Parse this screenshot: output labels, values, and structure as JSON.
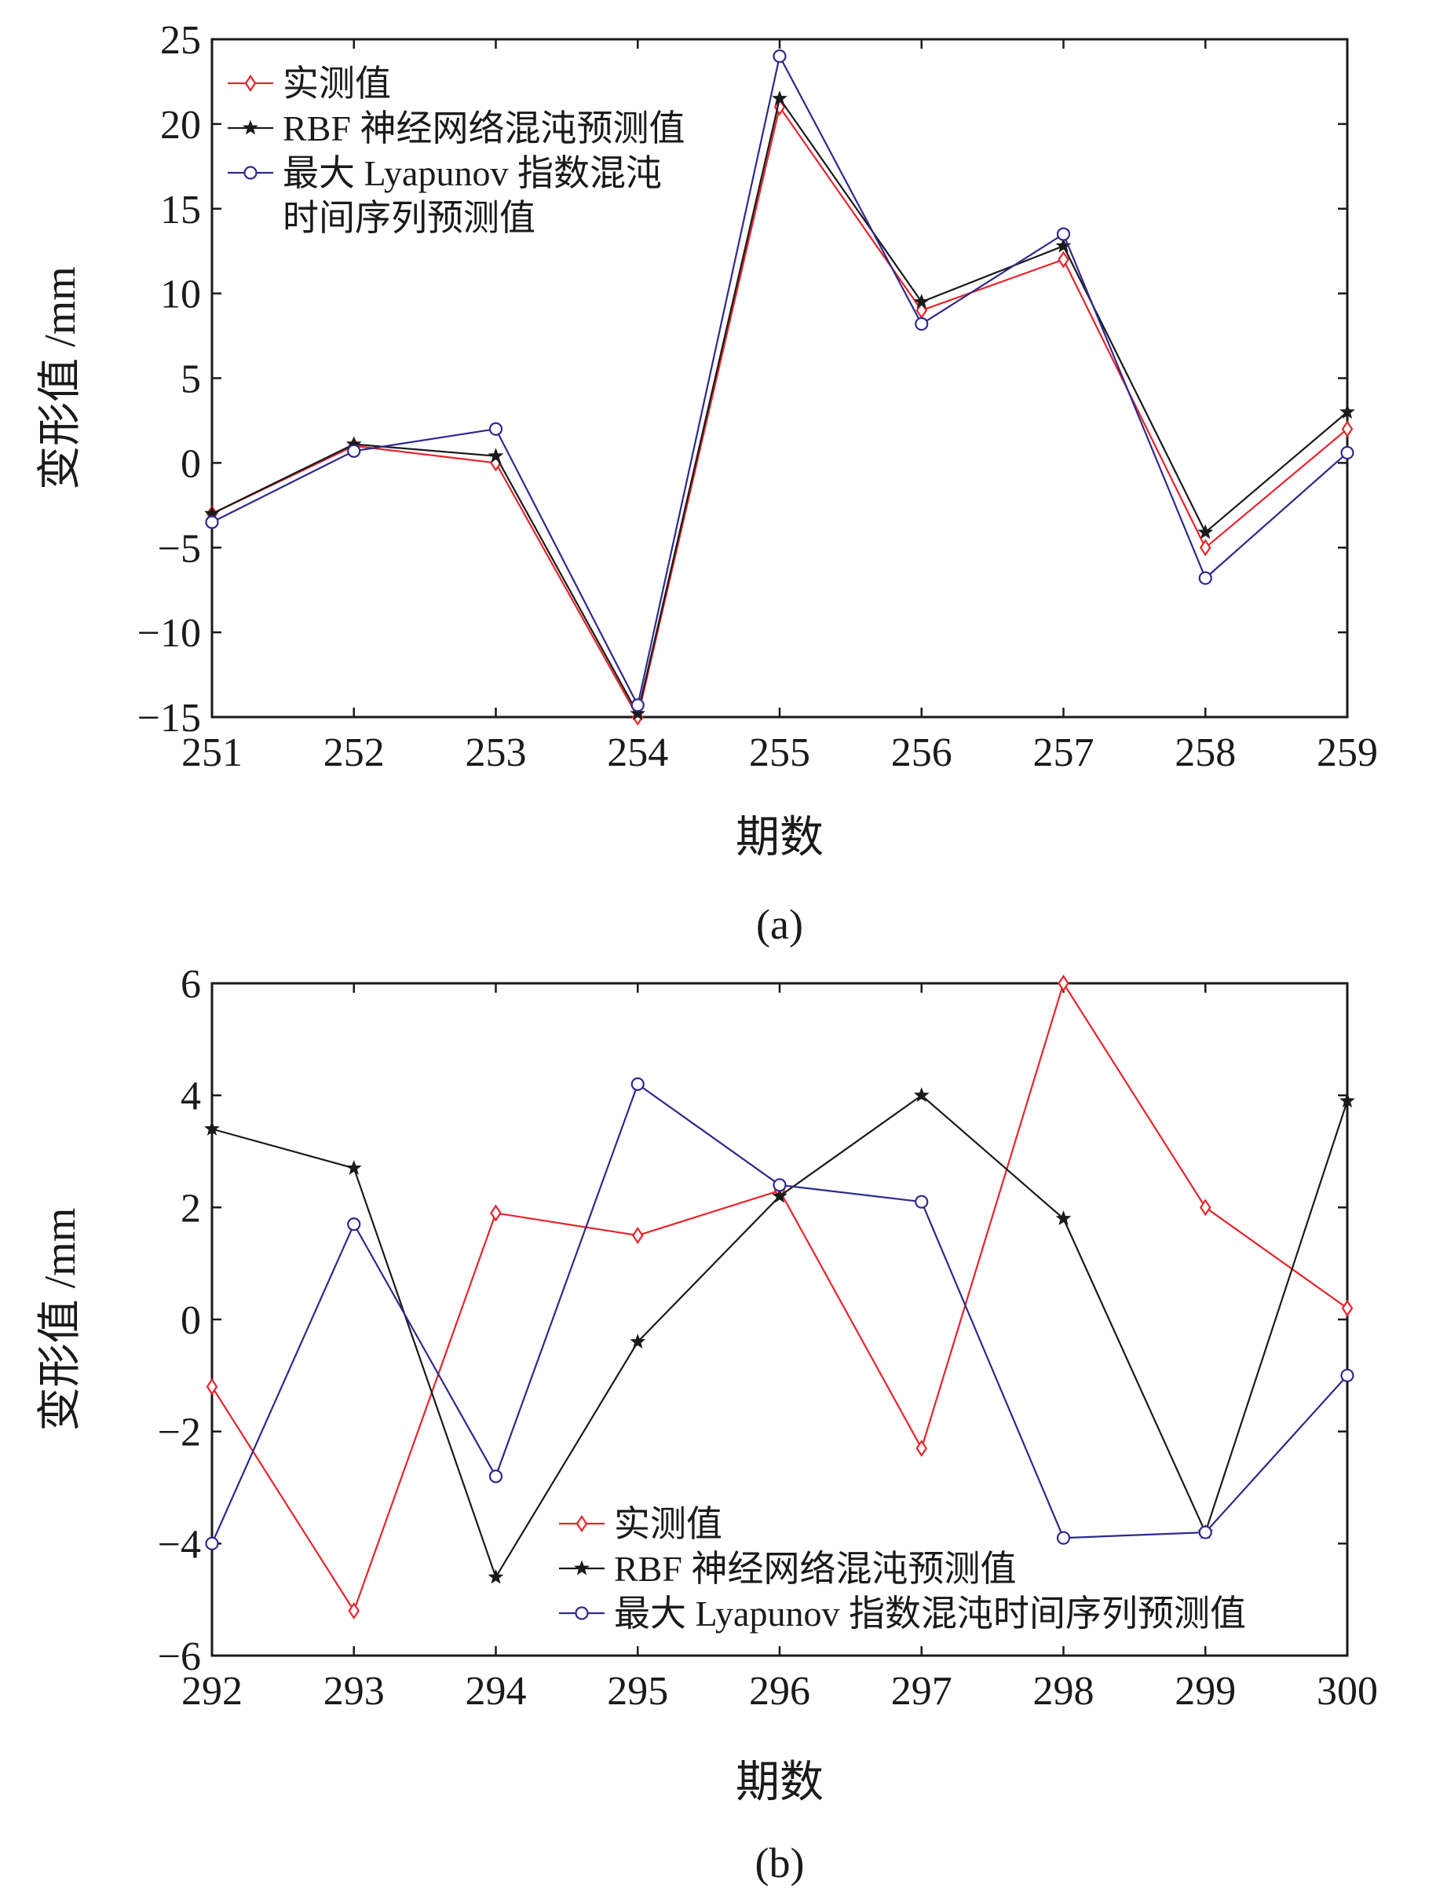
{
  "colors": {
    "measured": "#e8242a",
    "rbf": "#1a1a1a",
    "lyapunov": "#2e2a8c",
    "axis": "#1a1a1a"
  },
  "chart_data": [
    {
      "type": "line",
      "caption": "(a)",
      "xlabel": "期数",
      "ylabel": "变形值 /mm",
      "x": [
        251,
        252,
        253,
        254,
        255,
        256,
        257,
        258,
        259
      ],
      "xlim": [
        251,
        259
      ],
      "ylim": [
        -15,
        25
      ],
      "yticks": [
        -15,
        -10,
        -5,
        0,
        5,
        10,
        15,
        20,
        25
      ],
      "legend_position": "top-left",
      "series": [
        {
          "key": "measured",
          "name": "实测值",
          "marker": "diamond",
          "values": [
            -3.0,
            1.0,
            0.0,
            -15.0,
            21.0,
            9.0,
            12.0,
            -5.0,
            2.0
          ]
        },
        {
          "key": "rbf",
          "name": "RBF 神经网络混沌预测值",
          "marker": "star",
          "values": [
            -3.0,
            1.1,
            0.4,
            -14.8,
            21.5,
            9.5,
            12.8,
            -4.1,
            3.0
          ]
        },
        {
          "key": "lyapunov",
          "name": "最大 Lyapunov 指数混沌时间序列预测值",
          "legend_lines": [
            "最大 Lyapunov 指数混沌",
            "时间序列预测值"
          ],
          "marker": "circle",
          "values": [
            -3.5,
            0.7,
            2.0,
            -14.3,
            24.0,
            8.2,
            13.5,
            -6.8,
            0.6
          ]
        }
      ]
    },
    {
      "type": "line",
      "caption": "(b)",
      "xlabel": "期数",
      "ylabel": "变形值 /mm",
      "x": [
        292,
        293,
        294,
        295,
        296,
        297,
        298,
        299,
        300
      ],
      "xlim": [
        292,
        300
      ],
      "ylim": [
        -6,
        6
      ],
      "yticks": [
        -6,
        -4,
        -2,
        0,
        2,
        4,
        6
      ],
      "legend_position": "bottom-center",
      "series": [
        {
          "key": "measured",
          "name": "实测值",
          "marker": "diamond",
          "values": [
            -1.2,
            -5.2,
            1.9,
            1.5,
            2.3,
            -2.3,
            6.0,
            2.0,
            0.2
          ]
        },
        {
          "key": "rbf",
          "name": "RBF 神经网络混沌预测值",
          "marker": "star",
          "values": [
            3.4,
            2.7,
            -4.6,
            -0.4,
            2.2,
            4.0,
            1.8,
            -3.8,
            3.9
          ]
        },
        {
          "key": "lyapunov",
          "name": "最大 Lyapunov 指数混沌时间序列预测值",
          "legend_lines": [
            "最大 Lyapunov 指数混沌时间序列预测值"
          ],
          "marker": "circle",
          "values": [
            -4.0,
            1.7,
            -2.8,
            4.2,
            2.4,
            2.1,
            -3.9,
            -3.8,
            -1.0
          ]
        }
      ]
    }
  ]
}
